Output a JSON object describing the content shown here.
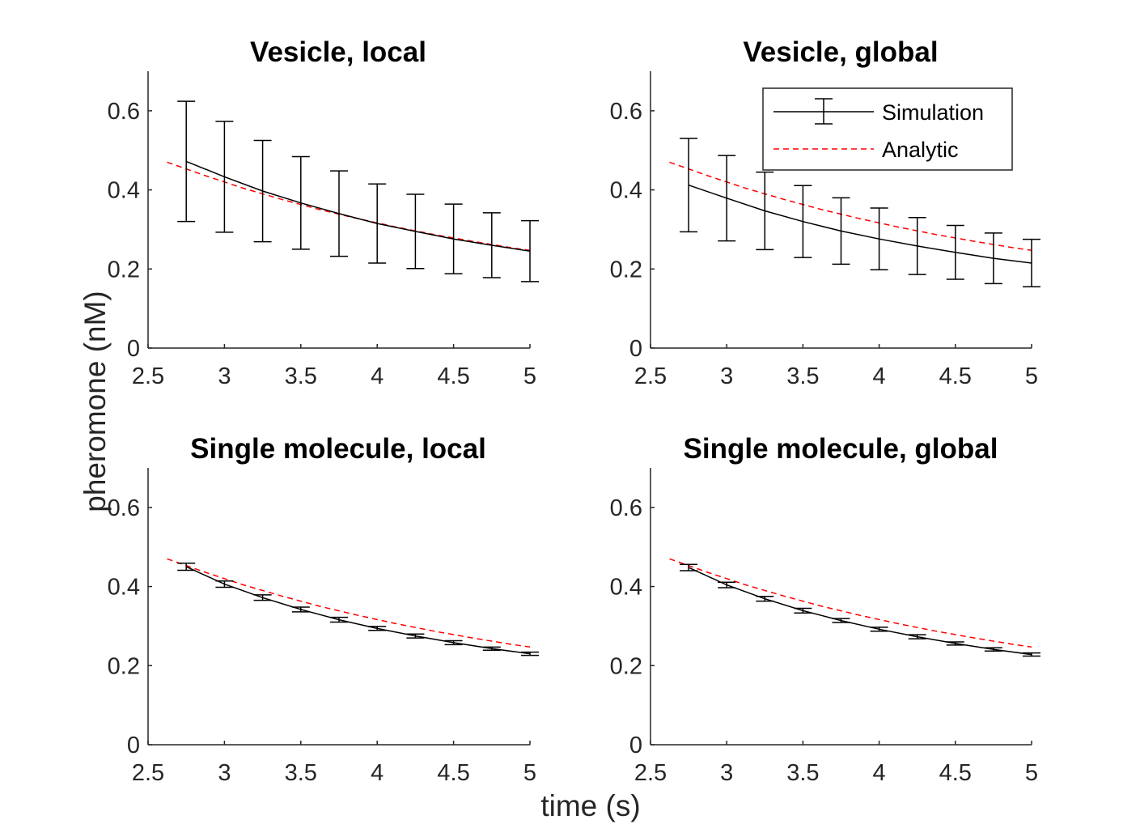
{
  "figure": {
    "xlabel": "time (s)",
    "ylabel": "pheromone (nM)",
    "colors": {
      "simulation": "#000000",
      "analytic": "#ff0000",
      "axis": "#262626"
    }
  },
  "legend": {
    "placement": "top-right of Vesicle, global panel",
    "entries": [
      "Simulation",
      "Analytic"
    ]
  },
  "chart_data": [
    {
      "type": "line",
      "title": "Vesicle, local",
      "xlim": [
        2.5,
        5
      ],
      "ylim": [
        0,
        0.7
      ],
      "xticks": [
        "2.5",
        "3",
        "3.5",
        "4",
        "4.5",
        "5"
      ],
      "yticks": [
        "0",
        "0.2",
        "0.4",
        "0.6"
      ],
      "grid": false,
      "series": [
        {
          "name": "Simulation",
          "style": "solid-errorbar",
          "x": [
            2.75,
            3.0,
            3.25,
            3.5,
            3.75,
            4.0,
            4.25,
            4.5,
            4.75,
            5.0
          ],
          "y": [
            0.472,
            0.433,
            0.397,
            0.367,
            0.34,
            0.315,
            0.295,
            0.276,
            0.26,
            0.245
          ],
          "err": [
            0.152,
            0.14,
            0.128,
            0.117,
            0.108,
            0.1,
            0.094,
            0.088,
            0.082,
            0.077
          ]
        },
        {
          "name": "Analytic",
          "style": "dashed",
          "x": [
            2.625,
            2.875,
            3.125,
            3.375,
            3.625,
            3.875,
            4.125,
            4.375,
            4.625,
            4.875,
            5.0
          ],
          "y": [
            0.47,
            0.436,
            0.404,
            0.376,
            0.35,
            0.327,
            0.306,
            0.287,
            0.27,
            0.254,
            0.247
          ]
        }
      ]
    },
    {
      "type": "line",
      "title": "Vesicle, global",
      "xlim": [
        2.5,
        5
      ],
      "ylim": [
        0,
        0.7
      ],
      "xticks": [
        "2.5",
        "3",
        "3.5",
        "4",
        "4.5",
        "5"
      ],
      "yticks": [
        "0",
        "0.2",
        "0.4",
        "0.6"
      ],
      "grid": false,
      "series": [
        {
          "name": "Simulation",
          "style": "solid-errorbar",
          "x": [
            2.75,
            3.0,
            3.25,
            3.5,
            3.75,
            4.0,
            4.25,
            4.5,
            4.75,
            5.0
          ],
          "y": [
            0.412,
            0.379,
            0.347,
            0.32,
            0.296,
            0.276,
            0.258,
            0.242,
            0.227,
            0.215
          ],
          "err": [
            0.118,
            0.108,
            0.098,
            0.091,
            0.084,
            0.078,
            0.072,
            0.068,
            0.064,
            0.06
          ]
        },
        {
          "name": "Analytic",
          "style": "dashed",
          "x": [
            2.625,
            2.875,
            3.125,
            3.375,
            3.625,
            3.875,
            4.125,
            4.375,
            4.625,
            4.875,
            5.0
          ],
          "y": [
            0.47,
            0.436,
            0.404,
            0.376,
            0.35,
            0.327,
            0.306,
            0.287,
            0.27,
            0.254,
            0.247
          ]
        }
      ]
    },
    {
      "type": "line",
      "title": "Single molecule, local",
      "xlim": [
        2.5,
        5
      ],
      "ylim": [
        0,
        0.7
      ],
      "xticks": [
        "2.5",
        "3",
        "3.5",
        "4",
        "4.5",
        "5"
      ],
      "yticks": [
        "0",
        "0.2",
        "0.4",
        "0.6"
      ],
      "grid": false,
      "series": [
        {
          "name": "Simulation",
          "style": "solid-errorbar",
          "x": [
            2.75,
            3.0,
            3.25,
            3.5,
            3.75,
            4.0,
            4.25,
            4.5,
            4.75,
            5.0
          ],
          "y": [
            0.45,
            0.406,
            0.372,
            0.342,
            0.316,
            0.294,
            0.275,
            0.258,
            0.243,
            0.23
          ],
          "err": [
            0.009,
            0.008,
            0.007,
            0.006,
            0.006,
            0.005,
            0.005,
            0.005,
            0.004,
            0.004
          ]
        },
        {
          "name": "Analytic",
          "style": "dashed",
          "x": [
            2.625,
            2.875,
            3.125,
            3.375,
            3.625,
            3.875,
            4.125,
            4.375,
            4.625,
            4.875,
            5.0
          ],
          "y": [
            0.47,
            0.436,
            0.404,
            0.376,
            0.35,
            0.327,
            0.306,
            0.287,
            0.27,
            0.254,
            0.247
          ]
        }
      ]
    },
    {
      "type": "line",
      "title": "Single molecule, global",
      "xlim": [
        2.5,
        5
      ],
      "ylim": [
        0,
        0.7
      ],
      "xticks": [
        "2.5",
        "3",
        "3.5",
        "4",
        "4.5",
        "5"
      ],
      "yticks": [
        "0",
        "0.2",
        "0.4",
        "0.6"
      ],
      "grid": false,
      "series": [
        {
          "name": "Simulation",
          "style": "solid-errorbar",
          "x": [
            2.75,
            3.0,
            3.25,
            3.5,
            3.75,
            4.0,
            4.25,
            4.5,
            4.75,
            5.0
          ],
          "y": [
            0.448,
            0.404,
            0.369,
            0.339,
            0.314,
            0.292,
            0.273,
            0.256,
            0.241,
            0.228
          ],
          "err": [
            0.008,
            0.007,
            0.006,
            0.006,
            0.005,
            0.005,
            0.005,
            0.004,
            0.004,
            0.004
          ]
        },
        {
          "name": "Analytic",
          "style": "dashed",
          "x": [
            2.625,
            2.875,
            3.125,
            3.375,
            3.625,
            3.875,
            4.125,
            4.375,
            4.625,
            4.875,
            5.0
          ],
          "y": [
            0.47,
            0.436,
            0.404,
            0.376,
            0.35,
            0.327,
            0.306,
            0.287,
            0.27,
            0.254,
            0.247
          ]
        }
      ]
    }
  ]
}
